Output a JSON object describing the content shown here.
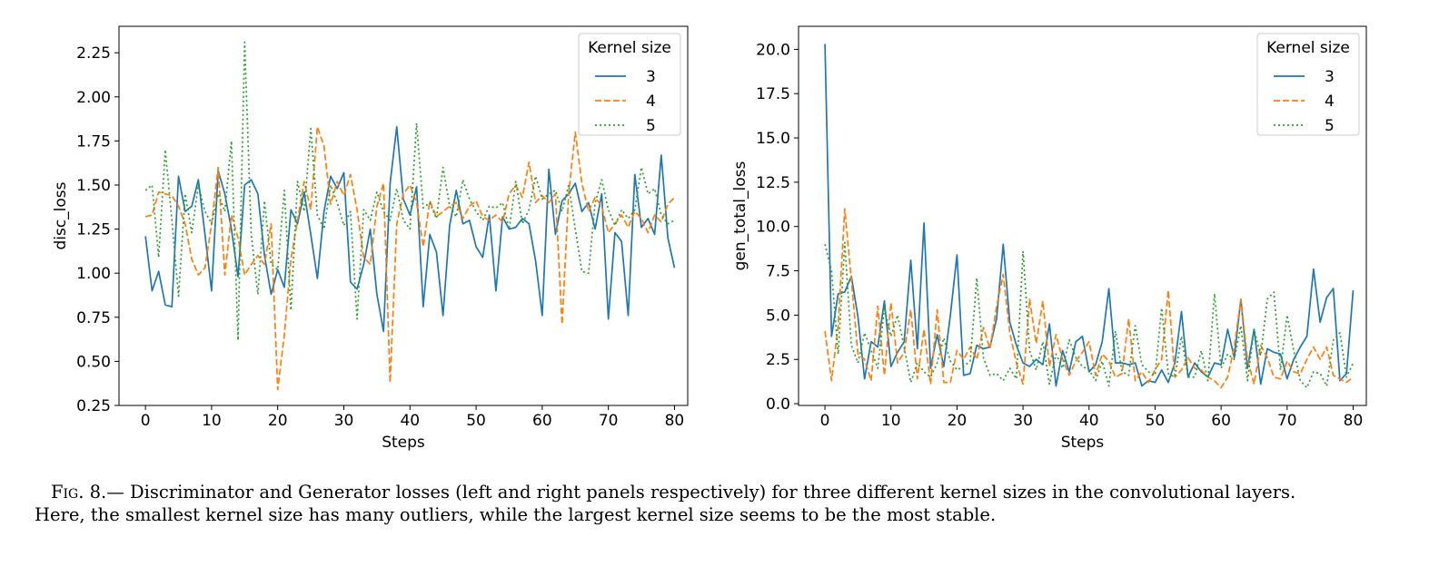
{
  "chart_data": [
    {
      "type": "line",
      "panel": "left",
      "xlabel": "Steps",
      "ylabel": "disc_loss",
      "xlim": [
        -4,
        82
      ],
      "ylim": [
        0.25,
        2.4
      ],
      "xticks": [
        0,
        10,
        20,
        30,
        40,
        50,
        60,
        70,
        80
      ],
      "xtick_labels": [
        "0",
        "10",
        "20",
        "30",
        "40",
        "50",
        "60",
        "70",
        "80"
      ],
      "yticks": [
        0.25,
        0.5,
        0.75,
        1.0,
        1.25,
        1.5,
        1.75,
        2.0,
        2.25
      ],
      "ytick_labels": [
        "0.25",
        "0.50",
        "0.75",
        "1.00",
        "1.25",
        "1.50",
        "1.75",
        "2.00",
        "2.25"
      ],
      "grid": false,
      "legend": {
        "title": "Kernel size",
        "placement": "top-right"
      },
      "series": [
        {
          "name": "3",
          "color": "#1f77b4",
          "style": "solid",
          "values": [
            1.21,
            0.9,
            1.01,
            0.82,
            0.81,
            1.55,
            1.35,
            1.38,
            1.53,
            1.22,
            0.9,
            1.58,
            1.45,
            1.25,
            0.98,
            1.5,
            1.53,
            1.45,
            1.1,
            0.88,
            1.02,
            0.92,
            1.36,
            1.28,
            1.46,
            1.22,
            0.97,
            1.35,
            1.55,
            1.48,
            1.57,
            0.95,
            0.91,
            1.05,
            1.25,
            0.88,
            0.67,
            1.51,
            1.83,
            1.42,
            1.33,
            1.49,
            0.81,
            1.22,
            1.12,
            0.76,
            1.27,
            1.47,
            1.28,
            1.3,
            1.15,
            1.09,
            1.33,
            0.9,
            1.32,
            1.25,
            1.26,
            1.31,
            1.28,
            1.07,
            0.76,
            1.59,
            1.22,
            1.41,
            1.45,
            1.51,
            1.35,
            1.4,
            1.25,
            1.45,
            0.74,
            1.23,
            1.18,
            0.76,
            1.56,
            1.26,
            1.31,
            1.22,
            1.67,
            1.2,
            1.03
          ]
        },
        {
          "name": "4",
          "color": "#ff7f0e",
          "style": "dashed",
          "values": [
            1.32,
            1.33,
            1.46,
            1.45,
            1.44,
            1.38,
            1.28,
            1.08,
            0.99,
            1.03,
            1.28,
            1.6,
            0.99,
            1.33,
            1.2,
            0.99,
            1.05,
            1.1,
            1.05,
            1.28,
            0.34,
            0.65,
            1.08,
            1.3,
            1.52,
            1.36,
            1.83,
            1.72,
            1.39,
            1.52,
            1.44,
            1.56,
            1.36,
            1.09,
            1.05,
            1.38,
            1.51,
            0.38,
            1.28,
            1.45,
            1.5,
            1.4,
            1.15,
            1.41,
            1.32,
            1.35,
            1.38,
            1.4,
            1.31,
            1.38,
            1.41,
            1.32,
            1.3,
            1.33,
            1.29,
            1.45,
            1.5,
            1.43,
            1.63,
            1.4,
            1.44,
            1.4,
            1.45,
            0.71,
            1.45,
            1.8,
            1.51,
            1.35,
            1.43,
            1.38,
            1.23,
            1.28,
            1.33,
            1.26,
            1.35,
            1.31,
            1.23,
            1.33,
            1.29,
            1.39,
            1.43
          ]
        },
        {
          "name": "5",
          "color": "#2ca02c",
          "style": "dotted",
          "values": [
            1.47,
            1.5,
            1.09,
            1.7,
            1.3,
            0.87,
            1.45,
            1.23,
            1.5,
            1.35,
            1.28,
            1.45,
            1.35,
            1.75,
            0.62,
            2.31,
            1.22,
            0.88,
            1.41,
            1.05,
            1.02,
            1.47,
            0.79,
            1.52,
            1.35,
            1.82,
            1.33,
            1.25,
            1.5,
            1.4,
            1.27,
            1.35,
            0.74,
            1.36,
            1.3,
            1.46,
            1.35,
            1.3,
            1.48,
            1.3,
            1.25,
            1.85,
            1.37,
            1.4,
            1.31,
            1.6,
            1.38,
            1.32,
            1.53,
            1.42,
            1.35,
            1.3,
            1.38,
            1.37,
            1.4,
            1.25,
            1.52,
            1.28,
            1.36,
            1.55,
            1.42,
            1.45,
            1.47,
            1.35,
            1.5,
            1.25,
            1.01,
            1.0,
            1.4,
            1.53,
            1.36,
            1.27,
            1.36,
            1.31,
            1.36,
            1.6,
            1.45,
            1.48,
            1.33,
            1.28,
            1.3
          ]
        }
      ]
    },
    {
      "type": "line",
      "panel": "right",
      "xlabel": "Steps",
      "ylabel": "gen_total_loss",
      "xlim": [
        -4,
        82
      ],
      "ylim": [
        -0.1,
        21.3
      ],
      "xticks": [
        0,
        10,
        20,
        30,
        40,
        50,
        60,
        70,
        80
      ],
      "xtick_labels": [
        "0",
        "10",
        "20",
        "30",
        "40",
        "50",
        "60",
        "70",
        "80"
      ],
      "yticks": [
        0,
        2.5,
        5,
        7.5,
        10,
        12.5,
        15,
        17.5,
        20
      ],
      "ytick_labels": [
        "0.0",
        "2.5",
        "5.0",
        "7.5",
        "10.0",
        "12.5",
        "15.0",
        "17.5",
        "20.0"
      ],
      "grid": false,
      "legend": {
        "title": "Kernel size",
        "placement": "top-right"
      },
      "series": [
        {
          "name": "3",
          "color": "#1f77b4",
          "style": "solid",
          "values": [
            20.3,
            3.8,
            6.2,
            6.3,
            7.2,
            4.9,
            1.4,
            3.5,
            3.2,
            5.8,
            2.1,
            2.9,
            3.5,
            8.1,
            3.1,
            10.2,
            2.0,
            3.9,
            2.1,
            5.0,
            8.4,
            1.6,
            1.7,
            3.3,
            3.1,
            3.2,
            4.8,
            9.0,
            4.6,
            3.3,
            2.3,
            2.1,
            2.5,
            2.2,
            4.5,
            1.0,
            3.0,
            1.8,
            3.5,
            3.8,
            1.8,
            2.2,
            3.5,
            6.5,
            2.3,
            2.3,
            2.2,
            2.3,
            1.0,
            1.3,
            1.2,
            1.9,
            1.2,
            2.3,
            5.2,
            1.5,
            2.3,
            1.8,
            1.5,
            2.3,
            2.2,
            4.2,
            2.6,
            5.9,
            2.0,
            4.2,
            1.1,
            3.1,
            2.9,
            2.8,
            1.4,
            2.5,
            3.2,
            3.8,
            7.6,
            4.6,
            6.0,
            6.5,
            1.3,
            1.7,
            6.4
          ]
        },
        {
          "name": "4",
          "color": "#ff7f0e",
          "style": "dashed",
          "values": [
            4.1,
            1.3,
            4.4,
            11.0,
            7.0,
            2.8,
            2.5,
            1.3,
            5.5,
            1.6,
            5.7,
            2.3,
            2.9,
            5.3,
            1.4,
            4.2,
            1.1,
            5.3,
            1.2,
            1.2,
            3.0,
            2.5,
            3.2,
            2.5,
            4.3,
            3.1,
            5.5,
            7.3,
            4.0,
            2.3,
            1.1,
            5.9,
            3.4,
            5.8,
            2.1,
            3.9,
            2.5,
            1.6,
            2.4,
            2.9,
            3.5,
            1.6,
            2.8,
            2.4,
            1.5,
            1.7,
            4.8,
            1.3,
            1.8,
            1.2,
            1.9,
            2.5,
            6.4,
            1.5,
            1.9,
            2.6,
            2.0,
            1.9,
            1.5,
            1.3,
            0.9,
            1.5,
            3.2,
            5.9,
            2.5,
            1.1,
            3.3,
            2.6,
            1.5,
            1.4,
            2.4,
            1.8,
            1.7,
            2.5,
            3.2,
            2.5,
            3.2,
            1.6,
            1.4,
            1.2,
            1.5
          ]
        },
        {
          "name": "5",
          "color": "#2ca02c",
          "style": "dotted",
          "values": [
            9.0,
            7.5,
            2.8,
            9.1,
            3.3,
            2.3,
            4.0,
            3.0,
            2.0,
            5.4,
            3.8,
            5.0,
            3.2,
            1.2,
            2.3,
            1.8,
            1.5,
            2.3,
            3.7,
            2.4,
            1.9,
            2.1,
            2.4,
            7.1,
            2.6,
            1.6,
            1.7,
            1.3,
            2.0,
            1.4,
            8.6,
            3.0,
            1.9,
            3.5,
            1.1,
            2.8,
            2.0,
            3.6,
            2.6,
            2.1,
            1.9,
            1.3,
            2.4,
            1.0,
            4.1,
            1.8,
            1.6,
            4.4,
            2.2,
            1.8,
            1.6,
            5.4,
            1.7,
            1.5,
            3.8,
            1.5,
            1.5,
            3.0,
            1.3,
            6.2,
            2.0,
            2.8,
            2.5,
            4.4,
            1.3,
            4.2,
            2.7,
            5.9,
            6.3,
            1.9,
            5.0,
            3.0,
            1.3,
            0.9,
            1.8,
            1.7,
            1.0,
            3.6,
            4.0,
            1.5,
            2.3
          ]
        }
      ]
    }
  ],
  "caption": {
    "label": "Fig. 8.—",
    "line1": " Discriminator and Generator losses (left and right panels respectively) for three different kernel sizes in the convolutional layers.",
    "line2": "Here, the smallest kernel size has many outliers, while the largest kernel size seems to be the most stable."
  }
}
